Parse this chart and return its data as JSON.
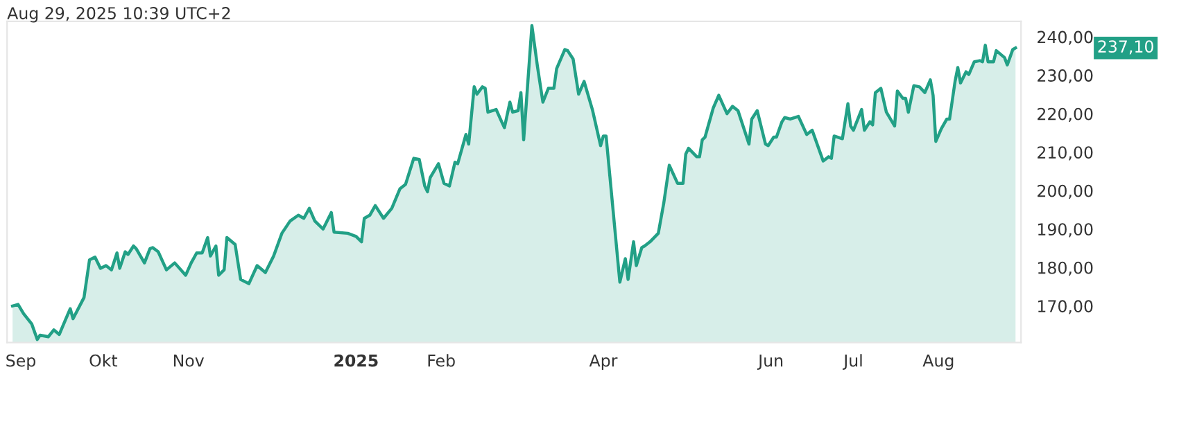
{
  "chart_data": {
    "type": "area",
    "title": "Aug 29, 2025 10:39 UTC+2",
    "x": [
      "2024-08-29",
      "2024-08-31",
      "2024-09-02",
      "2024-09-05",
      "2024-09-07",
      "2024-09-08",
      "2024-09-11",
      "2024-09-13",
      "2024-09-15",
      "2024-09-17",
      "2024-09-19",
      "2024-09-20",
      "2024-09-24",
      "2024-09-26",
      "2024-09-28",
      "2024-09-30",
      "2024-10-02",
      "2024-10-04",
      "2024-10-06",
      "2024-10-07",
      "2024-10-09",
      "2024-10-10",
      "2024-10-12",
      "2024-10-13",
      "2024-10-16",
      "2024-10-18",
      "2024-10-19",
      "2024-10-21",
      "2024-10-24",
      "2024-10-27",
      "2024-10-31",
      "2024-11-02",
      "2024-11-04",
      "2024-11-06",
      "2024-11-08",
      "2024-11-09",
      "2024-11-11",
      "2024-11-12",
      "2024-11-14",
      "2024-11-15",
      "2024-11-18",
      "2024-11-20",
      "2024-11-23",
      "2024-11-26",
      "2024-11-29",
      "2024-12-02",
      "2024-12-05",
      "2024-12-08",
      "2024-12-11",
      "2024-12-13",
      "2024-12-15",
      "2024-12-17",
      "2024-12-20",
      "2024-12-23",
      "2024-12-24",
      "2024-12-29",
      "2025-01-01",
      "2025-01-03",
      "2025-01-04",
      "2025-01-06",
      "2025-01-08",
      "2025-01-11",
      "2025-01-14",
      "2025-01-17",
      "2025-01-19",
      "2025-01-22",
      "2025-01-24",
      "2025-01-26",
      "2025-01-27",
      "2025-01-28",
      "2025-01-31",
      "2025-02-02",
      "2025-02-04",
      "2025-02-06",
      "2025-02-07",
      "2025-02-10",
      "2025-02-11",
      "2025-02-13",
      "2025-02-14",
      "2025-02-16",
      "2025-02-17",
      "2025-02-18",
      "2025-02-21",
      "2025-02-23",
      "2025-02-24",
      "2025-02-26",
      "2025-02-27",
      "2025-03-01",
      "2025-03-02",
      "2025-03-03",
      "2025-03-06",
      "2025-03-08",
      "2025-03-10",
      "2025-03-12",
      "2025-03-14",
      "2025-03-15",
      "2025-03-18",
      "2025-03-19",
      "2025-03-21",
      "2025-03-23",
      "2025-03-25",
      "2025-03-28",
      "2025-03-31",
      "2025-04-01",
      "2025-04-02",
      "2025-04-07",
      "2025-04-09",
      "2025-04-10",
      "2025-04-12",
      "2025-04-13",
      "2025-04-15",
      "2025-04-16",
      "2025-04-18",
      "2025-04-21",
      "2025-04-23",
      "2025-04-25",
      "2025-04-28",
      "2025-04-30",
      "2025-05-01",
      "2025-05-02",
      "2025-05-05",
      "2025-05-06",
      "2025-05-07",
      "2025-05-08",
      "2025-05-11",
      "2025-05-13",
      "2025-05-16",
      "2025-05-18",
      "2025-05-20",
      "2025-05-24",
      "2025-05-25",
      "2025-05-27",
      "2025-05-30",
      "2025-05-31",
      "2025-06-02",
      "2025-06-03",
      "2025-06-05",
      "2025-06-06",
      "2025-06-08",
      "2025-06-11",
      "2025-06-14",
      "2025-06-16",
      "2025-06-20",
      "2025-06-22",
      "2025-06-23",
      "2025-06-24",
      "2025-06-27",
      "2025-06-29",
      "2025-06-30",
      "2025-07-01",
      "2025-07-04",
      "2025-07-05",
      "2025-07-07",
      "2025-07-08",
      "2025-07-09",
      "2025-07-11",
      "2025-07-13",
      "2025-07-16",
      "2025-07-17",
      "2025-07-19",
      "2025-07-20",
      "2025-07-21",
      "2025-07-23",
      "2025-07-25",
      "2025-07-27",
      "2025-07-29",
      "2025-07-30",
      "2025-07-31",
      "2025-08-02",
      "2025-08-04",
      "2025-08-05",
      "2025-08-07",
      "2025-08-08",
      "2025-08-09",
      "2025-08-11",
      "2025-08-12",
      "2025-08-14",
      "2025-08-16",
      "2025-08-17",
      "2025-08-18",
      "2025-08-19",
      "2025-08-21",
      "2025-08-22",
      "2025-08-25",
      "2025-08-26",
      "2025-08-28",
      "2025-08-29"
    ],
    "series": [
      {
        "color": "#22a086",
        "values": [
          170.0,
          170.4,
          168,
          165.3,
          161.3,
          162.4,
          162,
          163.8,
          162.6,
          166,
          169.3,
          166.7,
          172.2,
          182,
          182.7,
          179.8,
          180.5,
          179.4,
          183.8,
          179.8,
          184.1,
          183.4,
          185.6,
          184.9,
          181.2,
          184.9,
          185.2,
          184.1,
          179.4,
          181.2,
          178,
          181.2,
          183.8,
          183.8,
          187.8,
          183,
          185.6,
          178,
          179.4,
          187.8,
          186,
          176.9,
          175.8,
          180.5,
          178.7,
          183,
          188.9,
          192.1,
          193.6,
          192.8,
          195.4,
          192.1,
          190,
          194.3,
          189.2,
          188.9,
          188.1,
          186.7,
          192.8,
          193.6,
          196.1,
          192.8,
          195.4,
          200.5,
          201.6,
          208.4,
          208.1,
          201.2,
          199.7,
          203.4,
          207,
          201.9,
          201.2,
          207.4,
          207,
          214.6,
          212.1,
          227,
          225.1,
          227,
          226.6,
          220.4,
          221.1,
          217.9,
          216.4,
          223,
          220.4,
          220.8,
          225.5,
          213.2,
          242.9,
          232.4,
          223,
          226.6,
          226.6,
          231.7,
          236.7,
          236.4,
          234.2,
          225.1,
          228.4,
          221.1,
          211.7,
          214.2,
          214.2,
          176.2,
          182.3,
          176.9,
          186.7,
          180.5,
          185.2,
          185.6,
          186.7,
          188.9,
          196.8,
          206.6,
          201.9,
          201.9,
          209.5,
          211,
          208.8,
          208.8,
          213.2,
          213.9,
          221.5,
          224.8,
          220,
          221.9,
          220.8,
          212.1,
          218.6,
          220.8,
          212.1,
          211.7,
          213.9,
          213.9,
          217.9,
          219,
          218.6,
          219.3,
          214.6,
          215.7,
          207.7,
          208.8,
          208.4,
          214.2,
          213.5,
          222.6,
          216.8,
          215.7,
          221.1,
          215.7,
          217.9,
          217.1,
          225.5,
          226.6,
          220.4,
          216.8,
          225.9,
          224,
          224,
          220.4,
          227.3,
          227,
          225.5,
          228.8,
          224.8,
          212.8,
          216.1,
          218.6,
          218.6,
          228.4,
          232,
          228,
          230.9,
          230.2,
          233.5,
          233.8,
          233.5,
          237.8,
          233.5,
          233.5,
          236.4,
          234.6,
          232.7,
          236.7,
          237.1
        ]
      }
    ],
    "xlim": [
      "2024-08-27",
      "2025-08-31"
    ],
    "xticks": [
      {
        "value": "2024-09-01",
        "label": "Sep"
      },
      {
        "value": "2024-10-01",
        "label": "Okt"
      },
      {
        "value": "2024-11-01",
        "label": "Nov"
      },
      {
        "value": "2025-01-01",
        "label": "2025"
      },
      {
        "value": "2025-02-01",
        "label": "Feb"
      },
      {
        "value": "2025-04-01",
        "label": "Apr"
      },
      {
        "value": "2025-06-01",
        "label": "Jun"
      },
      {
        "value": "2025-07-01",
        "label": "Jul"
      },
      {
        "value": "2025-08-01",
        "label": "Aug"
      }
    ],
    "ylim": [
      160.5,
      244
    ],
    "yticks": [
      {
        "value": 170,
        "label": "170,00"
      },
      {
        "value": 180,
        "label": "180,00"
      },
      {
        "value": 190,
        "label": "190,00"
      },
      {
        "value": 200,
        "label": "200,00"
      },
      {
        "value": 210,
        "label": "210,00"
      },
      {
        "value": 220,
        "label": "220,00"
      },
      {
        "value": 230,
        "label": "230,00"
      },
      {
        "value": 240,
        "label": "240,00"
      }
    ],
    "annotations": [
      "237,10"
    ]
  }
}
